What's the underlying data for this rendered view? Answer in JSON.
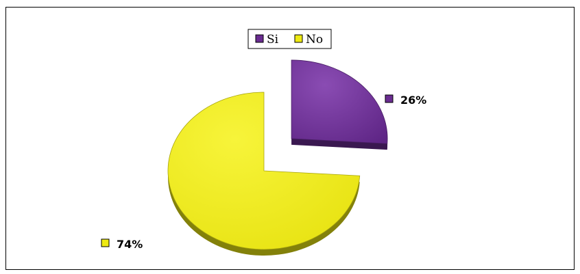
{
  "chart_data": {
    "type": "pie",
    "style": "3d-exploded",
    "categories": [
      "Si",
      "No"
    ],
    "values": [
      26,
      74
    ],
    "data_labels": [
      "26%",
      "74%"
    ],
    "colors": [
      "#6a2c91",
      "#eeea12"
    ],
    "exploded": [
      "Si"
    ],
    "legend": {
      "position": "top",
      "entries": [
        "Si",
        "No"
      ]
    }
  }
}
